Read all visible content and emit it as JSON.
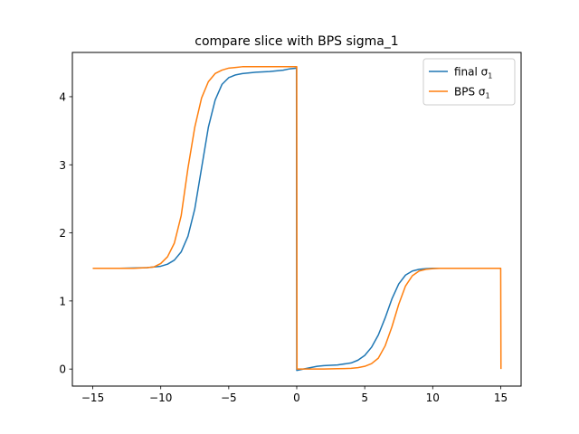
{
  "chart_data": {
    "type": "line",
    "title": "compare slice with BPS sigma_1",
    "xlabel": "",
    "ylabel": "",
    "xlim": [
      -16.5,
      16.5
    ],
    "ylim": [
      -0.25,
      4.65
    ],
    "xticks": [
      -15,
      -10,
      -5,
      0,
      5,
      10,
      15
    ],
    "yticks": [
      0,
      1,
      2,
      3,
      4
    ],
    "grid": false,
    "legend": {
      "position": "top-right"
    },
    "series": [
      {
        "name": "final σ",
        "name_subscript": "1",
        "color": "#1f77b4",
        "x": [
          -15,
          -14,
          -13,
          -12,
          -11,
          -10.5,
          -10,
          -9.5,
          -9,
          -8.5,
          -8,
          -7.5,
          -7,
          -6.5,
          -6,
          -5.5,
          -5,
          -4.5,
          -4,
          -3,
          -2,
          -1,
          -0.5,
          -0.02,
          0,
          0.02,
          0.5,
          1,
          1.5,
          2,
          3,
          4,
          4.5,
          5,
          5.5,
          6,
          6.5,
          7,
          7.5,
          8,
          8.5,
          9,
          9.5,
          10,
          10.5,
          11,
          12,
          13,
          14,
          14.98
        ],
        "y": [
          1.48,
          1.48,
          1.48,
          1.485,
          1.49,
          1.5,
          1.51,
          1.54,
          1.6,
          1.72,
          1.95,
          2.35,
          2.95,
          3.55,
          3.95,
          4.18,
          4.28,
          4.32,
          4.34,
          4.36,
          4.37,
          4.39,
          4.41,
          4.42,
          -0.02,
          -0.02,
          0.0,
          0.02,
          0.04,
          0.05,
          0.06,
          0.09,
          0.13,
          0.2,
          0.32,
          0.5,
          0.75,
          1.03,
          1.25,
          1.38,
          1.44,
          1.465,
          1.475,
          1.48,
          1.48,
          1.48,
          1.48,
          1.48,
          1.48,
          1.48
        ]
      },
      {
        "name": "BPS σ",
        "name_subscript": "1",
        "color": "#ff7f0e",
        "x": [
          -15,
          -14,
          -13,
          -12,
          -11,
          -10.5,
          -10,
          -9.5,
          -9,
          -8.5,
          -8,
          -7.5,
          -7,
          -6.5,
          -6,
          -5.5,
          -5,
          -4.5,
          -4,
          -3,
          -2,
          -1,
          0,
          0.02,
          1,
          2,
          3,
          4,
          4.5,
          5,
          5.5,
          6,
          6.5,
          7,
          7.5,
          8,
          8.5,
          9,
          9.5,
          10,
          10.5,
          11,
          12,
          13,
          14,
          15,
          15.02
        ],
        "y": [
          1.48,
          1.48,
          1.48,
          1.48,
          1.49,
          1.5,
          1.55,
          1.65,
          1.85,
          2.25,
          2.95,
          3.55,
          3.98,
          4.22,
          4.34,
          4.39,
          4.42,
          4.43,
          4.44,
          4.44,
          4.44,
          4.44,
          4.44,
          0.0,
          0.0,
          0.0,
          0.005,
          0.01,
          0.02,
          0.04,
          0.08,
          0.16,
          0.34,
          0.62,
          0.95,
          1.22,
          1.37,
          1.44,
          1.465,
          1.475,
          1.48,
          1.48,
          1.48,
          1.48,
          1.48,
          1.48,
          0.0
        ]
      }
    ]
  }
}
